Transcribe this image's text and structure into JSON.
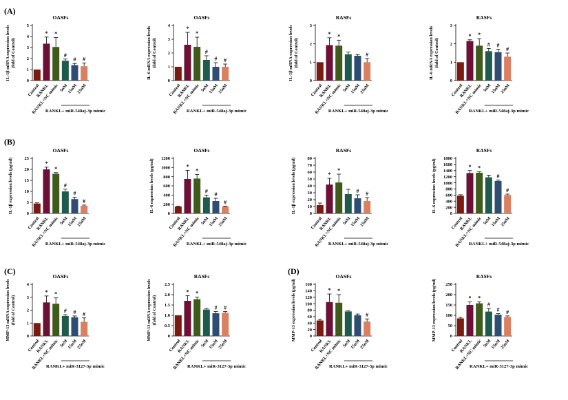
{
  "row_labels": {
    "A": "(A)",
    "B": "(B)",
    "C": "(C)",
    "D": "(D)"
  },
  "categories": [
    "Control",
    "RANKL",
    "RANKL+NC mimic",
    "5nM",
    "15nM",
    "25nM"
  ],
  "colors": [
    "#7b1a10",
    "#6d1036",
    "#3e5b1c",
    "#1f5a4e",
    "#2f4d72",
    "#d98062"
  ],
  "chart_data": [
    {
      "type": "bar",
      "title": "OASFs",
      "ylabel": [
        "IL-1β mRNA expression levels",
        "(fold of Control)"
      ],
      "ylim": [
        0,
        5
      ],
      "ticks": [
        "0",
        "1",
        "2",
        "3",
        "4",
        "5"
      ],
      "values": [
        1,
        3.35,
        3.05,
        1.8,
        1.4,
        1.3
      ],
      "errors": [
        0,
        0.6,
        0.85,
        0.15,
        0.15,
        0.3
      ],
      "markers": [
        "",
        "*",
        "*",
        "#",
        "#",
        "#"
      ],
      "group": "RANKL+ miR-548aj-3p mimic"
    },
    {
      "type": "bar",
      "title": "OASFs",
      "ylabel": [
        "IL-6 mRNA expression levels",
        "(fold of Control)"
      ],
      "ylim": [
        0,
        4
      ],
      "ticks": [
        "0",
        "1",
        "2",
        "3",
        "4"
      ],
      "values": [
        1,
        2.6,
        2.45,
        1.5,
        1.0,
        1.0
      ],
      "errors": [
        0,
        0.9,
        0.7,
        0.3,
        0.3,
        0.2
      ],
      "markers": [
        "",
        "*",
        "*",
        "#",
        "#",
        "#"
      ],
      "group": "RANKL+ miR-548aj-3p mimic"
    },
    {
      "type": "bar",
      "title": "RASFs",
      "ylabel": [
        "IL-1β mRNA expression levels",
        "(fold of Control)"
      ],
      "ylim": [
        0,
        3
      ],
      "ticks": [
        "0",
        "1",
        "2",
        "3"
      ],
      "values": [
        1,
        1.93,
        1.9,
        1.43,
        1.35,
        1.0
      ],
      "errors": [
        0,
        0.4,
        0.3,
        0.12,
        0.07,
        0.2
      ],
      "markers": [
        "",
        "*",
        "*",
        "",
        "",
        "#"
      ],
      "group": "RANKL+ miR-548aj-3p mimic"
    },
    {
      "type": "bar",
      "title": "RASFs",
      "ylabel": [
        "IL-6 mRNA expression levels",
        "(fold of Control)"
      ],
      "ylim": [
        0,
        3
      ],
      "ticks": [
        "0",
        "1",
        "2",
        "3"
      ],
      "values": [
        1,
        2.15,
        1.9,
        1.6,
        1.55,
        1.3
      ],
      "errors": [
        0,
        0.07,
        0.38,
        0.15,
        0.15,
        0.2
      ],
      "markers": [
        "",
        "*",
        "*",
        "#",
        "#",
        "#"
      ],
      "group": "RANKL+ miR-548aj-3p mimic"
    },
    {
      "type": "bar",
      "title": "OASFs",
      "ylabel": [
        "IL-1β expression levels (pg/ml)"
      ],
      "ylim": [
        0,
        25
      ],
      "ticks": [
        "0",
        "5",
        "10",
        "15",
        "20",
        "25"
      ],
      "values": [
        4.5,
        20,
        18,
        10,
        6.5,
        3.5
      ],
      "errors": [
        0.3,
        1,
        0.5,
        1,
        0.8,
        0.3
      ],
      "markers": [
        "",
        "*",
        "*",
        "#",
        "#",
        "#"
      ],
      "group": "RANKL+ miR-548aj-3p mimic"
    },
    {
      "type": "bar",
      "title": "OASFs",
      "ylabel": [
        "IL-6 expression levels (pg/ml)"
      ],
      "ylim": [
        0,
        1200
      ],
      "ticks": [
        "0",
        "200",
        "400",
        "600",
        "800",
        "1000",
        "1200"
      ],
      "values": [
        150,
        750,
        760,
        350,
        270,
        150
      ],
      "errors": [
        10,
        190,
        90,
        50,
        60,
        10
      ],
      "markers": [
        "",
        "*",
        "*",
        "#",
        "#",
        "#"
      ],
      "group": "RANKL+ miR-548aj-3p mimic"
    },
    {
      "type": "bar",
      "title": "RASFs",
      "ylabel": [
        "IL-1β expression levels (pg/ml)"
      ],
      "ylim": [
        0,
        80
      ],
      "ticks": [
        "0",
        "10",
        "20",
        "30",
        "40",
        "50",
        "60",
        "70",
        "80"
      ],
      "values": [
        12,
        42,
        45,
        28,
        22,
        18
      ],
      "errors": [
        3,
        9,
        12,
        7,
        5,
        5
      ],
      "markers": [
        "",
        "*",
        "*",
        "",
        "#",
        "#"
      ],
      "group": "RANKL+ miR-548aj-3p mimic"
    },
    {
      "type": "bar",
      "title": "RASFs",
      "ylabel": [
        "IL-6 expression levels (pg/ml)"
      ],
      "ylim": [
        0,
        1800
      ],
      "ticks": [
        "0",
        "200",
        "400",
        "600",
        "800",
        "1000",
        "1200",
        "1400",
        "1600",
        "1800"
      ],
      "values": [
        580,
        1320,
        1330,
        1180,
        1060,
        600
      ],
      "errors": [
        30,
        80,
        30,
        70,
        30,
        30
      ],
      "markers": [
        "",
        "*",
        "*",
        "",
        "#",
        "#"
      ],
      "group": "RANKL+ miR-548aj-3p mimic"
    },
    {
      "type": "bar",
      "title": "OASFs",
      "ylabel": [
        "MMP-13 mRNA expression levels",
        "(fold of Control)"
      ],
      "ylim": [
        0,
        4
      ],
      "ticks": [
        "0",
        "1",
        "2",
        "3",
        "4"
      ],
      "values": [
        1,
        2.6,
        2.5,
        1.55,
        1.45,
        1.1
      ],
      "errors": [
        0,
        0.5,
        0.45,
        0.1,
        0.1,
        0.3
      ],
      "markers": [
        "",
        "*",
        "*",
        "#",
        "#",
        "#"
      ],
      "group": "RANKL+ miR-3127-3p mimic"
    },
    {
      "type": "bar",
      "title": "RASFs",
      "ylabel": [
        "MMP-13 mRNA expression levels",
        "(fold of Control)"
      ],
      "ylim": [
        0,
        2.5
      ],
      "ticks": [
        "0",
        "0.5",
        "1.0",
        "1.5",
        "2.0",
        "2.5"
      ],
      "values": [
        1,
        1.7,
        1.78,
        1.28,
        1.1,
        1.12
      ],
      "errors": [
        0,
        0.25,
        0.1,
        0.05,
        0.08,
        0.06
      ],
      "markers": [
        "",
        "*",
        "*",
        "",
        "#",
        "#"
      ],
      "group": "RANKL+ miR-3127-3p mimic"
    },
    {
      "type": "bar",
      "title": "OASFs",
      "ylabel": [
        "MMP-13 expression levels (pg/ml)"
      ],
      "ylim": [
        0,
        160
      ],
      "ticks": [
        "0",
        "20",
        "40",
        "60",
        "80",
        "100",
        "120",
        "140",
        "160"
      ],
      "values": [
        48,
        105,
        103,
        76,
        64,
        45
      ],
      "errors": [
        4,
        25,
        25,
        2,
        4,
        8
      ],
      "markers": [
        "",
        "*",
        "*",
        "",
        "",
        "#"
      ],
      "group": "RANKL+ miR-3127-3p mimic"
    },
    {
      "type": "bar",
      "title": "RASFs",
      "ylabel": [
        "MMP-13 expression levels (pg/ml)"
      ],
      "ylim": [
        0,
        250
      ],
      "ticks": [
        "0",
        "50",
        "100",
        "150",
        "200",
        "250"
      ],
      "values": [
        85,
        150,
        158,
        118,
        103,
        92
      ],
      "errors": [
        5,
        15,
        7,
        15,
        5,
        5
      ],
      "markers": [
        "",
        "*",
        "*",
        "#",
        "#",
        "#"
      ],
      "group": "RANKL+ miR-3127-3p mimic"
    }
  ]
}
